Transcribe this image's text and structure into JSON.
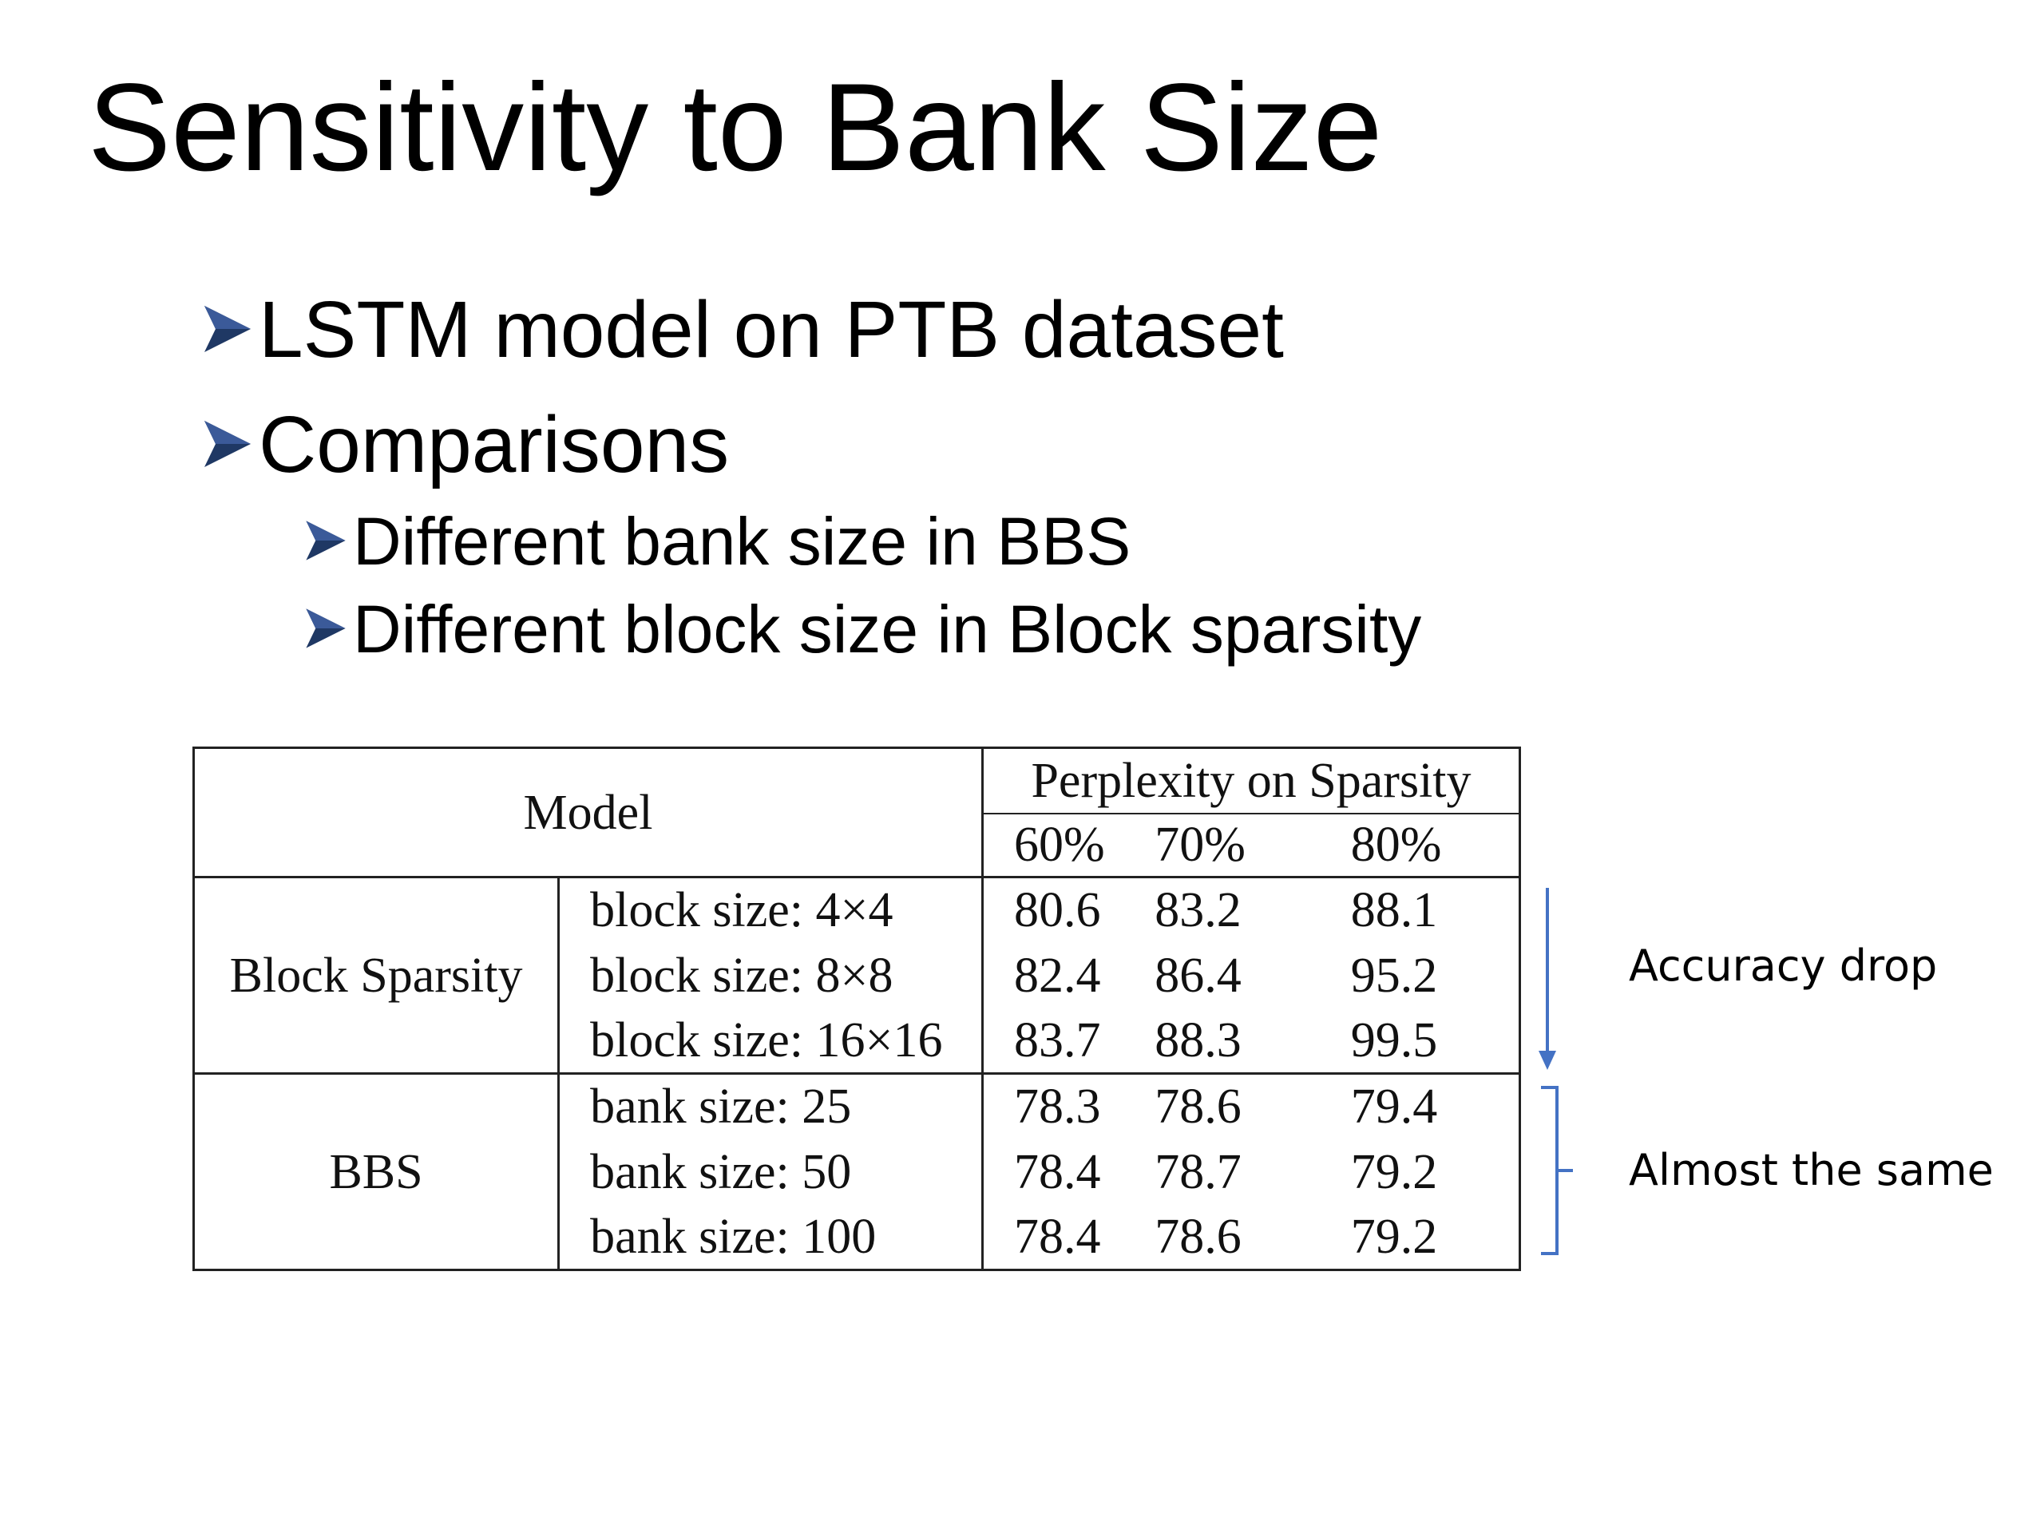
{
  "slide": {
    "title": "Sensitivity to Bank Size"
  },
  "bullets": [
    {
      "level": 1,
      "text": "LSTM model on PTB dataset",
      "icon": "arrow-bullet-icon"
    },
    {
      "level": 1,
      "text": "Comparisons",
      "icon": "arrow-bullet-icon"
    },
    {
      "level": 2,
      "text": "Different bank size in BBS",
      "icon": "arrow-bullet-icon"
    },
    {
      "level": 2,
      "text": "Different block size in Block sparsity",
      "icon": "arrow-bullet-icon"
    }
  ],
  "table": {
    "header_model": "Model",
    "header_perplexity": "Perplexity on Sparsity",
    "sparsity_columns": [
      "60%",
      "70%",
      "80%"
    ],
    "groups": [
      {
        "name": "Block Sparsity",
        "rows": [
          {
            "label": "block size: 4×4",
            "values": [
              "80.6",
              "83.2",
              "88.1"
            ]
          },
          {
            "label": "block size: 8×8",
            "values": [
              "82.4",
              "86.4",
              "95.2"
            ]
          },
          {
            "label": "block size: 16×16",
            "values": [
              "83.7",
              "88.3",
              "99.5"
            ]
          }
        ]
      },
      {
        "name": "BBS",
        "rows": [
          {
            "label": "bank size: 25",
            "values": [
              "78.3",
              "78.6",
              "79.4"
            ]
          },
          {
            "label": "bank size: 50",
            "values": [
              "78.4",
              "78.7",
              "79.2"
            ]
          },
          {
            "label": "bank size: 100",
            "values": [
              "78.4",
              "78.6",
              "79.2"
            ]
          }
        ]
      }
    ]
  },
  "annotations": {
    "accuracy_drop": "Accuracy drop",
    "almost_same": "Almost the same",
    "arrow_color": "#4472C4",
    "bullet_color": "#1F3864"
  }
}
